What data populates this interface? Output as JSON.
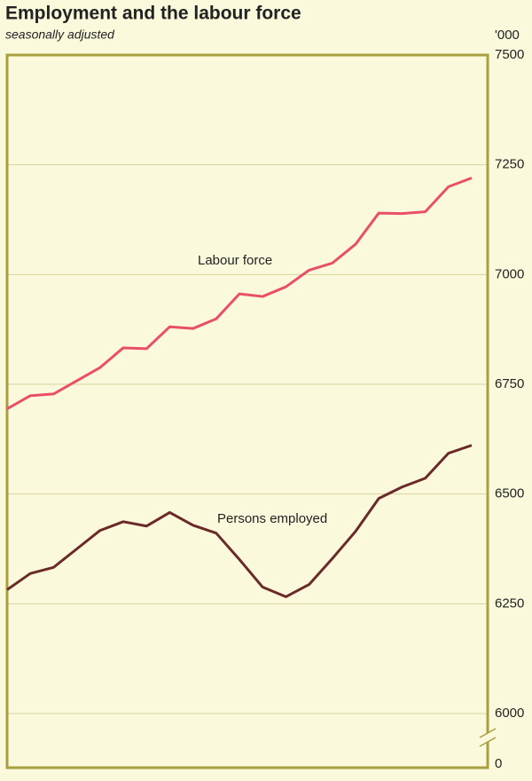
{
  "chart_data": {
    "type": "line",
    "title": "Employment and the labour force",
    "subtitle": "seasonally adjusted",
    "y_unit_label": "'000",
    "ylim": [
      6000,
      7500
    ],
    "yticks": [
      0,
      6000,
      6250,
      6500,
      6750,
      7000,
      7250,
      7500
    ],
    "axis_break": true,
    "grid": true,
    "series": [
      {
        "name": "Labour force",
        "color": "#e8506a",
        "values": [
          6694,
          6724,
          6728,
          6758,
          6788,
          6833,
          6831,
          6881,
          6877,
          6899,
          6956,
          6950,
          6972,
          7010,
          7026,
          7069,
          7140,
          7139,
          7143,
          7200,
          7220
        ]
      },
      {
        "name": "Persons employed",
        "color": "#6b2a2a",
        "values": [
          6282,
          6319,
          6333,
          6375,
          6417,
          6437,
          6427,
          6458,
          6429,
          6411,
          6351,
          6288,
          6266,
          6294,
          6353,
          6415,
          6490,
          6516,
          6536,
          6593,
          6611
        ]
      }
    ]
  }
}
